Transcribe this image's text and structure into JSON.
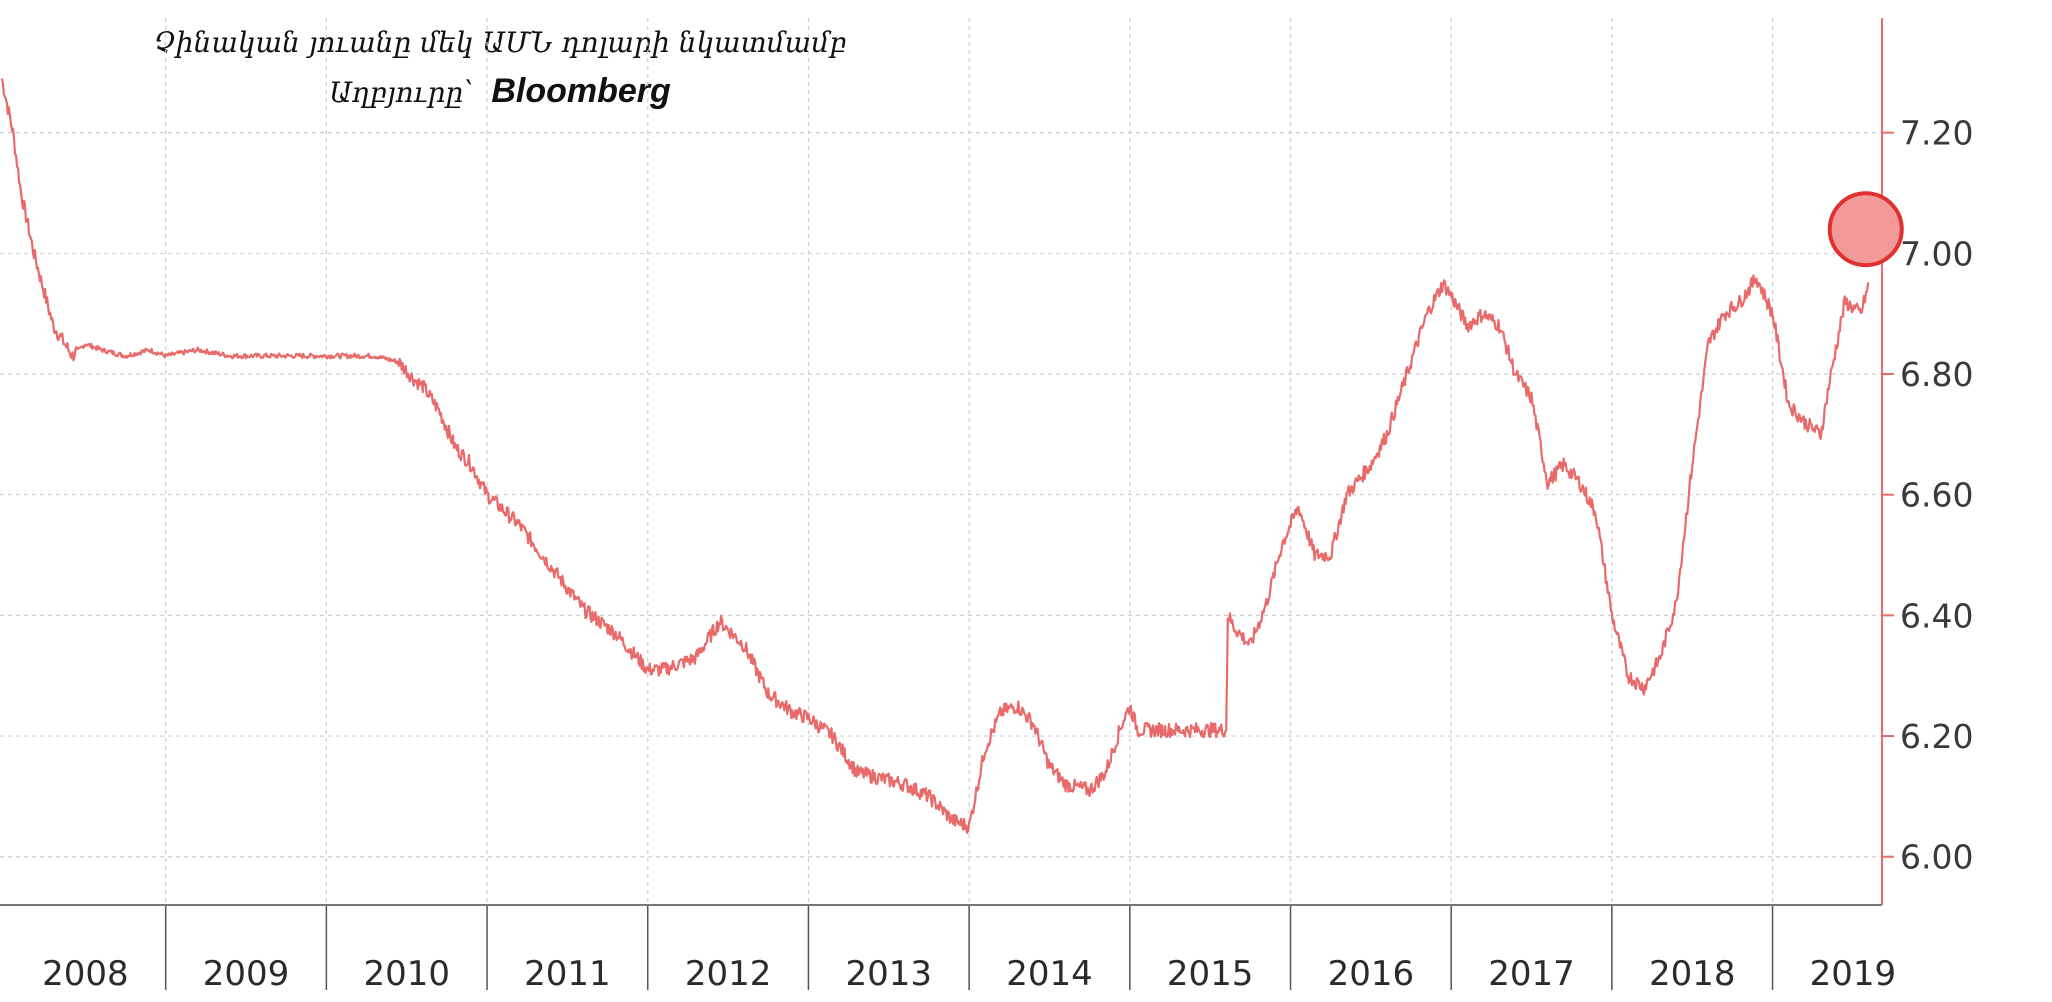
{
  "chart_data": {
    "type": "line",
    "title": "Չինական յուանը մեկ ԱՄՆ դոլարի նկատմամբ",
    "source_label": "Աղբյուրը՝",
    "source_name": "Bloomberg",
    "xlabel": "",
    "ylabel": "",
    "x_tick_labels": [
      "2008",
      "2009",
      "2010",
      "2011",
      "2012",
      "2013",
      "2014",
      "2015",
      "2016",
      "2017",
      "2018",
      "2019"
    ],
    "y_tick_labels": [
      "6.00",
      "6.20",
      "6.40",
      "6.60",
      "6.80",
      "7.00",
      "7.20"
    ],
    "xlim": [
      2008.0,
      2019.65
    ],
    "ylim": [
      5.92,
      7.39
    ],
    "y_axis_position": "right",
    "grid": true,
    "line_color": "#e86a6a",
    "highlight": {
      "x": 2019.58,
      "y": 7.04,
      "color": "#e03030",
      "fill": "#f29a9a"
    },
    "series": [
      {
        "values_x": [
          2007.98,
          2008.05,
          2008.1,
          2008.18,
          2008.3,
          2008.42,
          2008.5,
          2008.6,
          2008.75,
          2008.9,
          2009.0,
          2009.2,
          2009.4,
          2009.6,
          2009.8,
          2010.0,
          2010.3,
          2010.45,
          2010.55,
          2010.6,
          2010.7,
          2010.8,
          2010.9,
          2011.0,
          2011.2,
          2011.4,
          2011.6,
          2011.8,
          2012.0,
          2012.1,
          2012.3,
          2012.45,
          2012.6,
          2012.75,
          2012.9,
          2013.0,
          2013.15,
          2013.3,
          2013.45,
          2013.6,
          2013.75,
          2013.9,
          2014.0,
          2014.1,
          2014.2,
          2014.3,
          2014.4,
          2014.5,
          2014.6,
          2014.75,
          2014.85,
          2014.95,
          2015.0,
          2015.05,
          2015.1,
          2015.2,
          2015.3,
          2015.45,
          2015.6,
          2015.61,
          2015.65,
          2015.75,
          2015.85,
          2015.95,
          2016.05,
          2016.15,
          2016.25,
          2016.35,
          2016.5,
          2016.6,
          2016.7,
          2016.85,
          2016.95,
          2017.0,
          2017.1,
          2017.2,
          2017.3,
          2017.4,
          2017.5,
          2017.6,
          2017.7,
          2017.8,
          2017.9,
          2018.0,
          2018.1,
          2018.2,
          2018.3,
          2018.4,
          2018.5,
          2018.6,
          2018.7,
          2018.8,
          2018.9,
          2019.0,
          2019.1,
          2019.2,
          2019.3,
          2019.35,
          2019.45,
          2019.55,
          2019.6
        ],
        "values": [
          7.29,
          7.2,
          7.1,
          7.0,
          6.88,
          6.83,
          6.85,
          6.84,
          6.83,
          6.84,
          6.83,
          6.84,
          6.83,
          6.83,
          6.83,
          6.83,
          6.83,
          6.82,
          6.79,
          6.78,
          6.74,
          6.68,
          6.65,
          6.6,
          6.55,
          6.48,
          6.41,
          6.37,
          6.31,
          6.31,
          6.33,
          6.39,
          6.35,
          6.27,
          6.24,
          6.23,
          6.2,
          6.14,
          6.13,
          6.12,
          6.1,
          6.06,
          6.05,
          6.18,
          6.24,
          6.25,
          6.22,
          6.15,
          6.12,
          6.11,
          6.14,
          6.22,
          6.25,
          6.21,
          6.21,
          6.21,
          6.21,
          6.21,
          6.21,
          6.4,
          6.38,
          6.35,
          6.42,
          6.52,
          6.58,
          6.5,
          6.5,
          6.6,
          6.65,
          6.7,
          6.78,
          6.9,
          6.95,
          6.93,
          6.88,
          6.9,
          6.88,
          6.8,
          6.76,
          6.62,
          6.65,
          6.62,
          6.57,
          6.4,
          6.3,
          6.28,
          6.33,
          6.42,
          6.65,
          6.85,
          6.9,
          6.92,
          6.96,
          6.9,
          6.75,
          6.72,
          6.7,
          6.78,
          6.92,
          6.9,
          6.95
        ]
      }
    ]
  }
}
